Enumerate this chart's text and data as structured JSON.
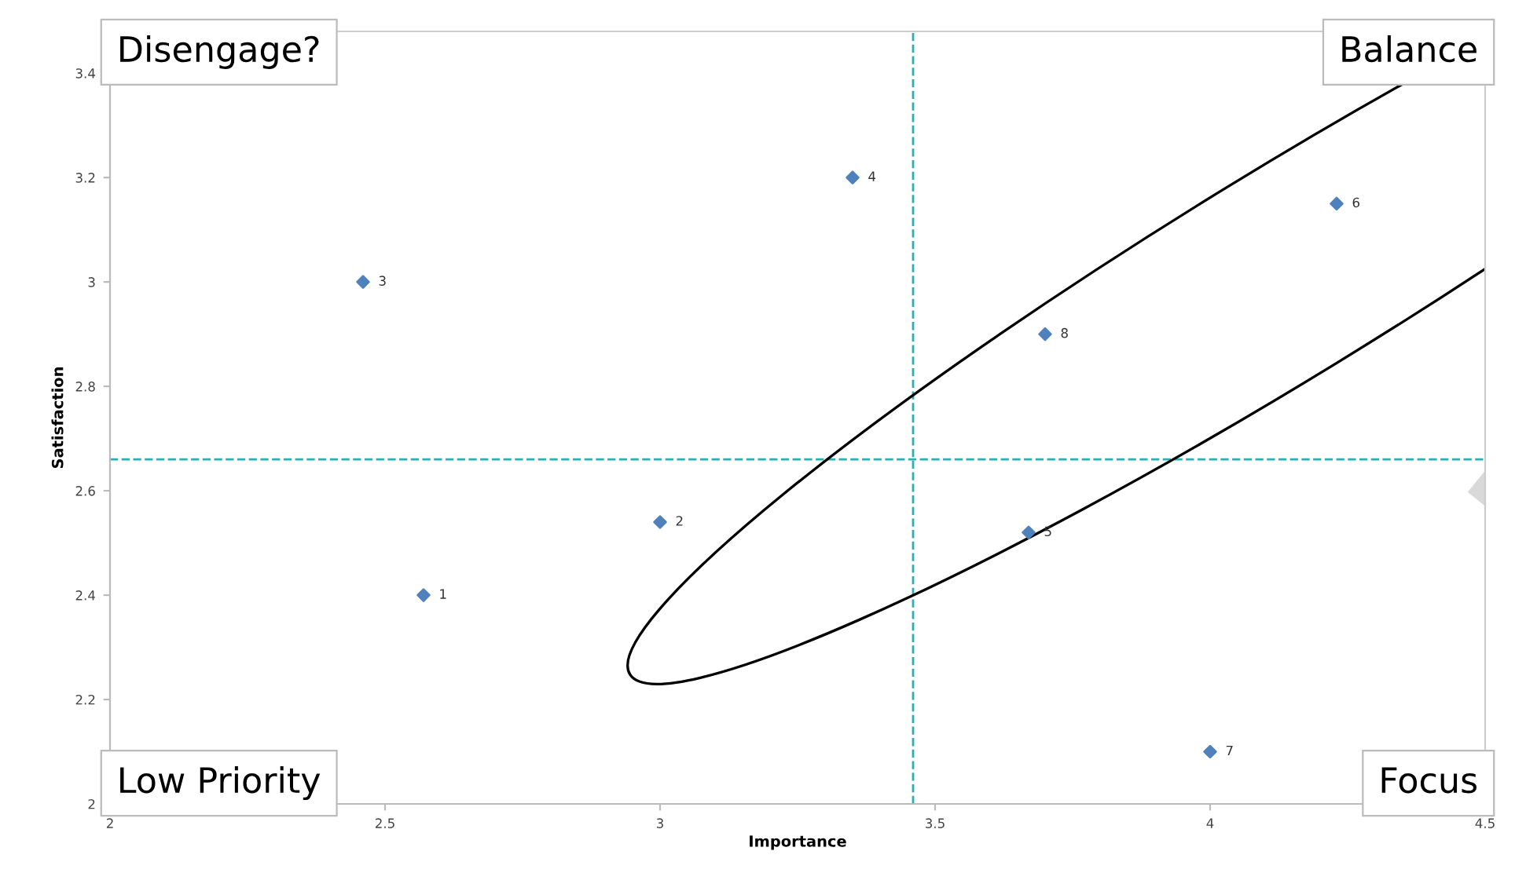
{
  "chart_data": {
    "type": "scatter",
    "xlabel": "Importance",
    "ylabel": "Satisfaction",
    "x": [
      2.57,
      3.0,
      2.46,
      3.35,
      3.67,
      4.23,
      4.0,
      3.7
    ],
    "values": [
      2.4,
      2.54,
      3.0,
      3.2,
      2.52,
      3.15,
      2.1,
      2.9
    ],
    "color": "#4f81bd",
    "marker": "diamond",
    "grid": false,
    "legend": false,
    "xlim": [
      2,
      4.5
    ],
    "xticks": [
      2,
      2.5,
      3,
      3.5,
      4,
      4.5
    ],
    "ylim": [
      2,
      3.48
    ],
    "yticks": [
      2,
      2.2,
      2.4,
      2.6,
      2.8,
      3,
      3.2,
      3.4
    ],
    "ref_lines": [
      {
        "axis": "x",
        "value": 3.46,
        "color": "#2ab0b0",
        "line_style": "dashed"
      },
      {
        "axis": "y",
        "value": 2.66,
        "color": "#2ab0b0",
        "line_style": "dashed"
      }
    ],
    "annotations": [
      {
        "text": "1",
        "x": 2.57,
        "y": 2.4
      },
      {
        "text": "2",
        "x": 3.0,
        "y": 2.54
      },
      {
        "text": "3",
        "x": 2.46,
        "y": 3.0
      },
      {
        "text": "4",
        "x": 3.35,
        "y": 3.2
      },
      {
        "text": "5",
        "x": 3.67,
        "y": 2.52
      },
      {
        "text": "6",
        "x": 4.23,
        "y": 3.15
      },
      {
        "text": "7",
        "x": 4.0,
        "y": 2.1
      },
      {
        "text": "8",
        "x": 3.7,
        "y": 2.9
      },
      "Disengage?",
      "Balance",
      "Low Priority",
      "Focus"
    ]
  }
}
